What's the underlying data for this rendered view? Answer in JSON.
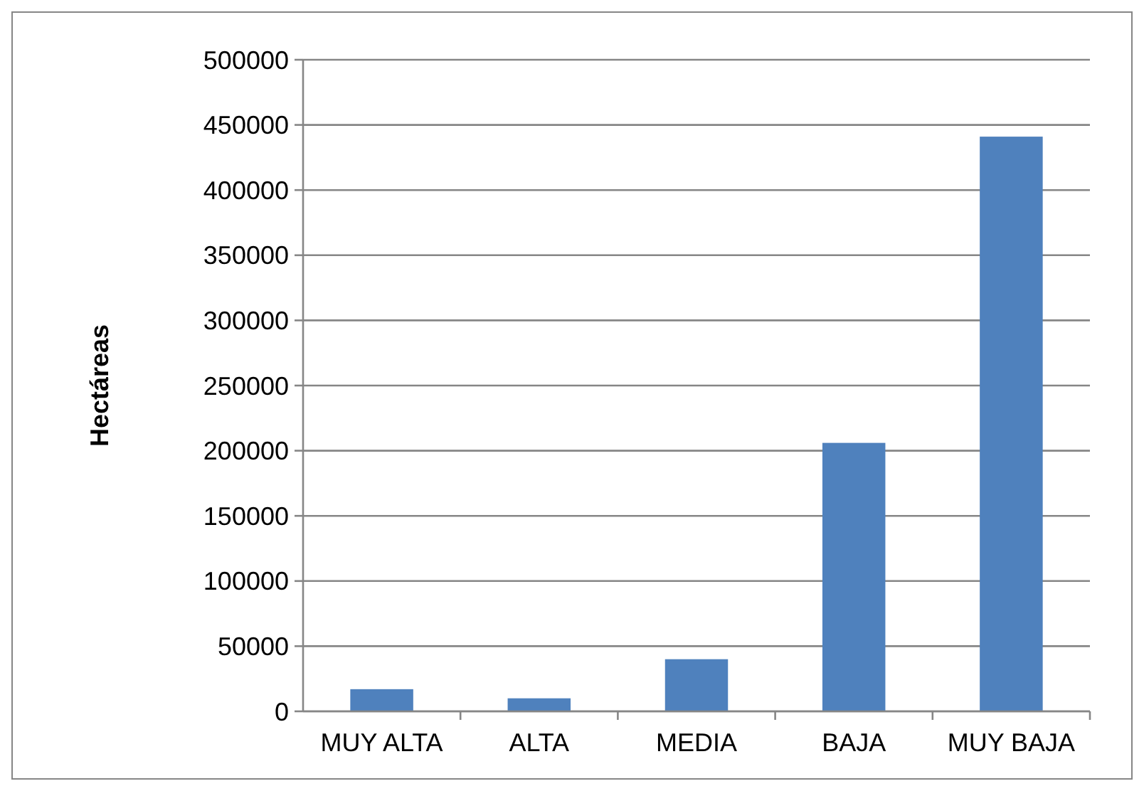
{
  "chart_data": {
    "type": "bar",
    "ylabel": "Hectáreas",
    "categories": [
      "MUY ALTA",
      "ALTA",
      "MEDIA",
      "BAJA",
      "MUY BAJA"
    ],
    "values": [
      17000,
      10000,
      40000,
      206000,
      441000
    ],
    "color": "#4f81bd",
    "ylim": [
      0,
      500000
    ],
    "yticks": [
      0,
      50000,
      100000,
      150000,
      200000,
      250000,
      300000,
      350000,
      400000,
      450000,
      500000
    ],
    "grid": "y"
  }
}
